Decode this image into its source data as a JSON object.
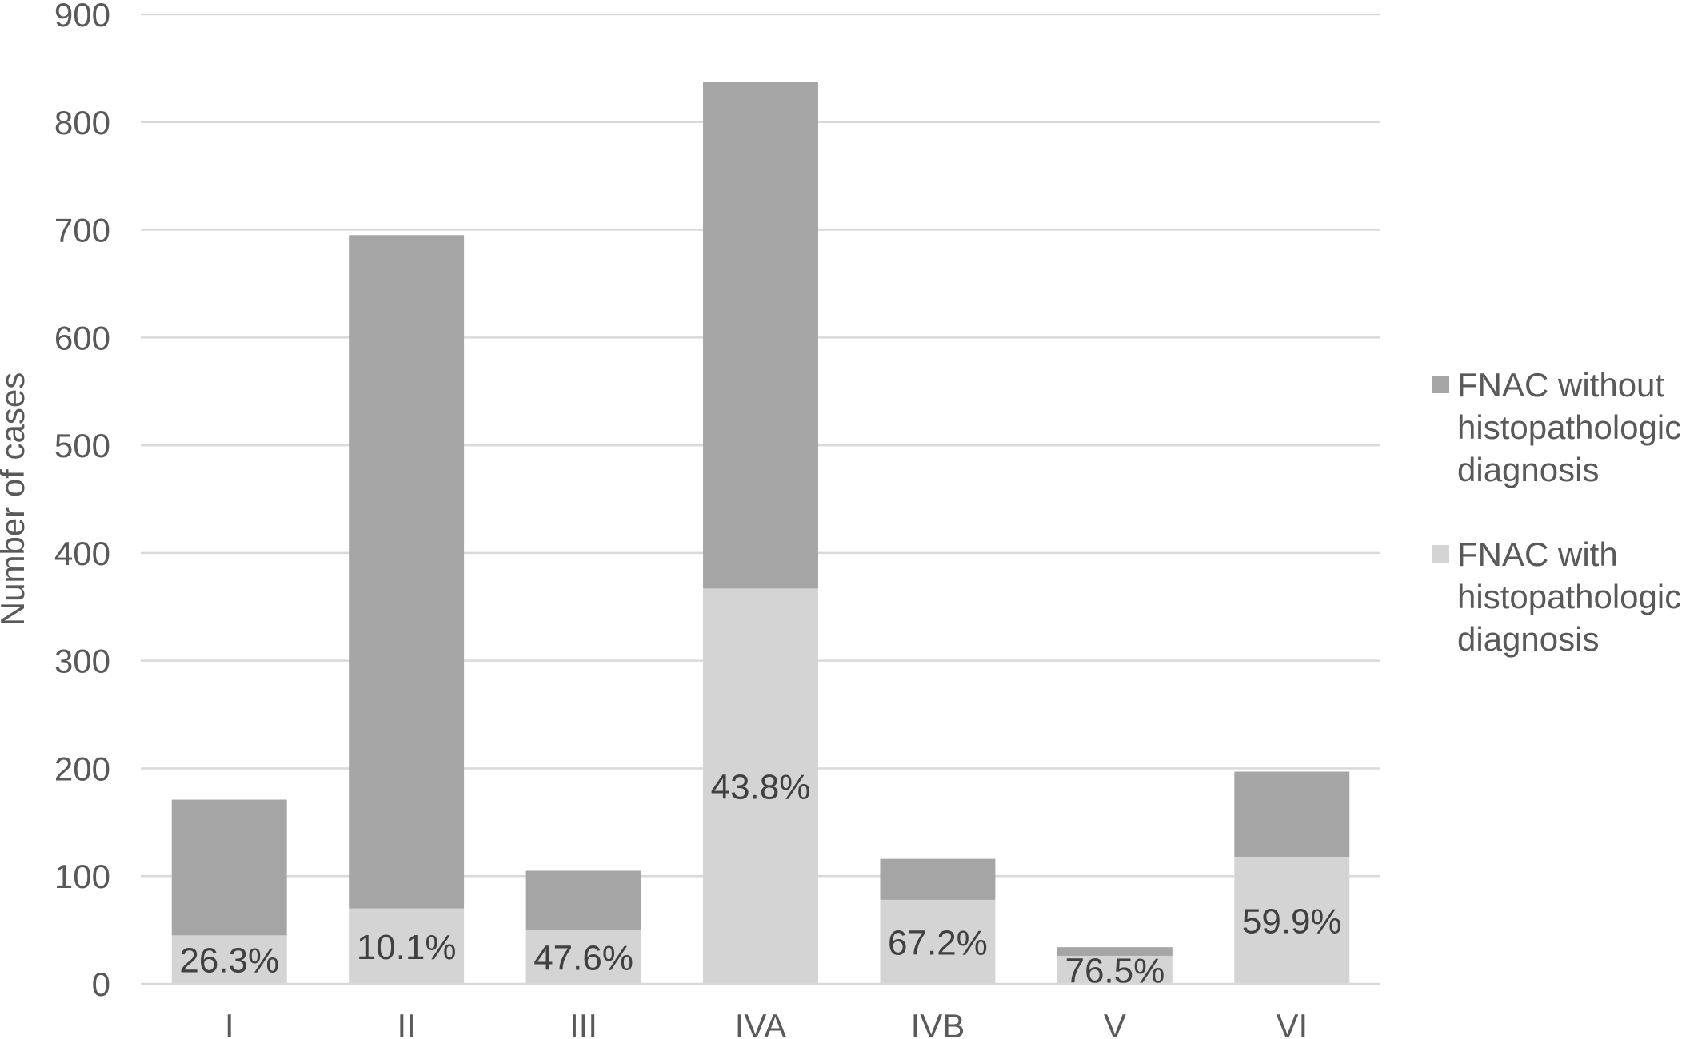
{
  "chart_data": {
    "type": "bar",
    "stacked": true,
    "categories": [
      "I",
      "II",
      "III",
      "IVA",
      "IVB",
      "V",
      "VI"
    ],
    "series": [
      {
        "name": "FNAC with histopathologic diagnosis",
        "color": "#d4d4d4",
        "values": [
          45,
          70,
          50,
          367,
          78,
          26,
          118
        ]
      },
      {
        "name": "FNAC without histopathologic diagnosis",
        "color": "#a5a5a5",
        "values": [
          126,
          625,
          55,
          470,
          38,
          8,
          79
        ]
      }
    ],
    "data_labels": [
      "26.3%",
      "10.1%",
      "47.6%",
      "43.8%",
      "67.2%",
      "76.5%",
      "59.9%"
    ],
    "ylabel": "Number of cases",
    "ylim": [
      0,
      900
    ],
    "yticks": [
      0,
      100,
      200,
      300,
      400,
      500,
      600,
      700,
      800,
      900
    ],
    "grid": true,
    "gridColor": "#d9d9d9",
    "legend": {
      "position": "right",
      "entries": [
        {
          "lines": [
            "FNAC without",
            "histopathologic",
            "diagnosis"
          ],
          "color": "#a5a5a5"
        },
        {
          "lines": [
            "FNAC with",
            "histopathologic",
            "diagnosis"
          ],
          "color": "#d4d4d4"
        }
      ]
    }
  }
}
